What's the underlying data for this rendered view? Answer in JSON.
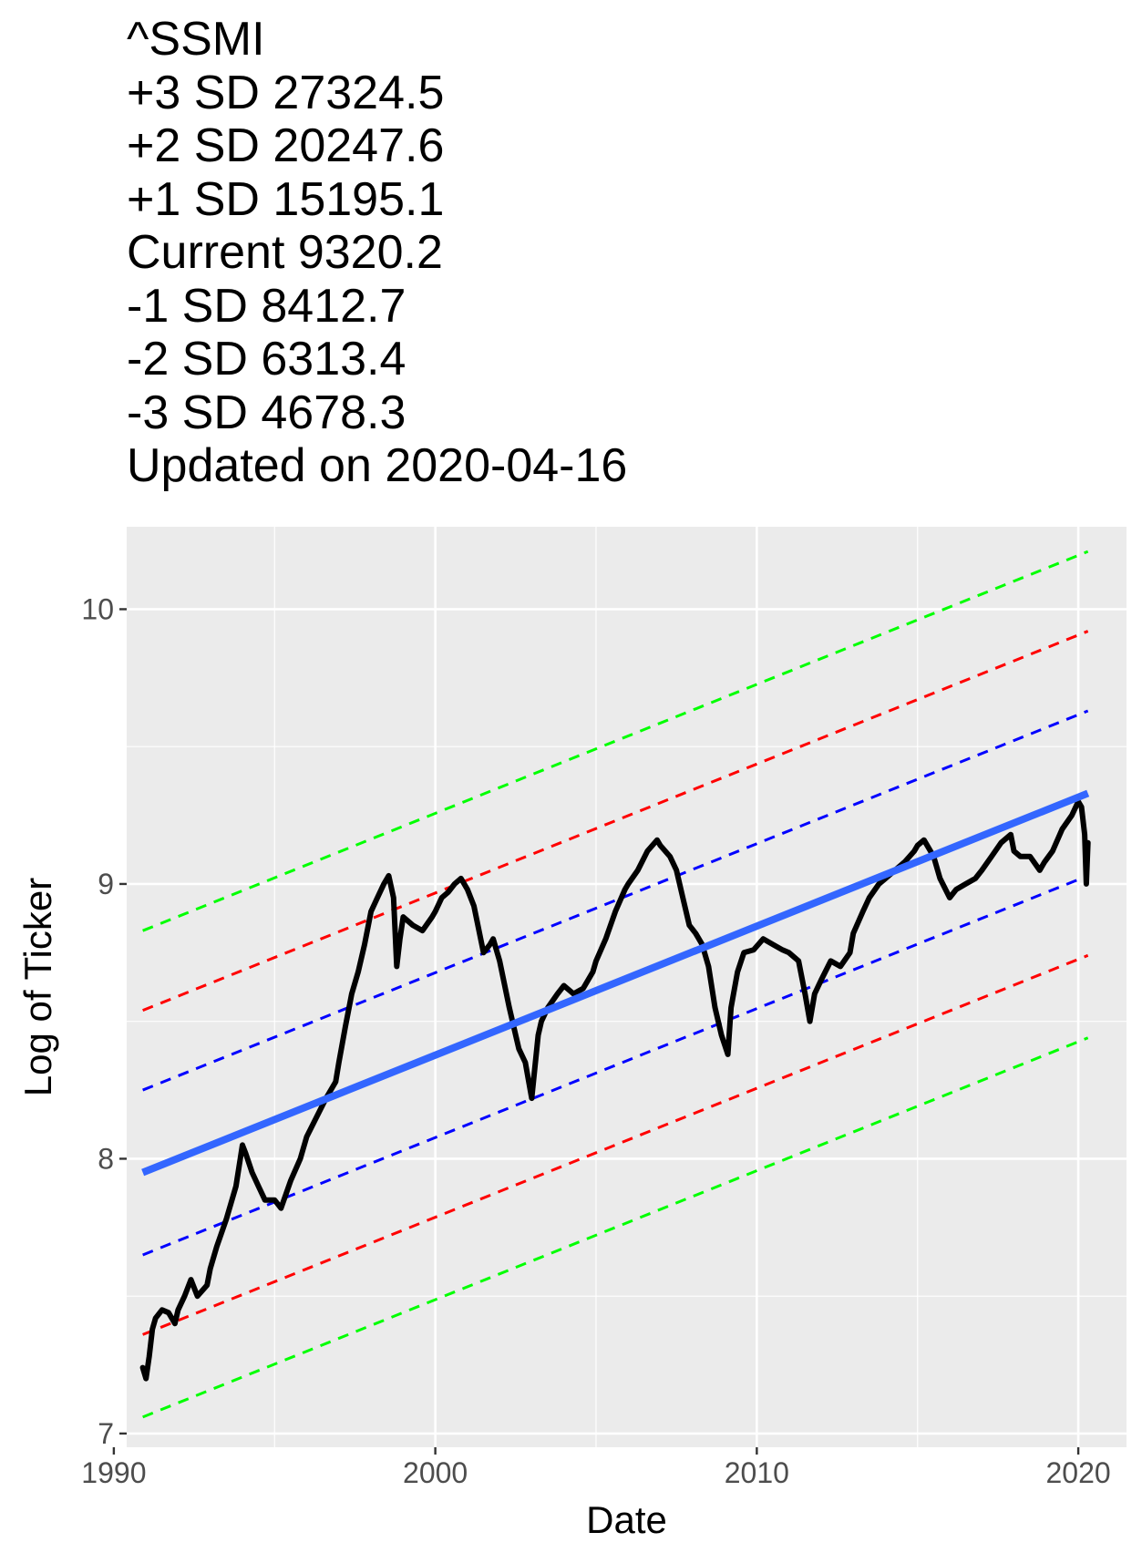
{
  "title_lines": [
    "^SSMI",
    "+3 SD 27324.5",
    "+2 SD 20247.6",
    "+1 SD 15195.1",
    "Current 9320.2",
    "-1 SD 8412.7",
    "-2 SD 6313.4",
    "-3 SD 4678.3",
    "Updated on 2020-04-16"
  ],
  "chart_data": {
    "type": "line",
    "xlabel": "Date",
    "ylabel": "Log of Ticker",
    "xlim": [
      1990.4,
      2021.5
    ],
    "ylim": [
      6.95,
      10.3
    ],
    "x_ticks": [
      1990,
      2000,
      2010,
      2020
    ],
    "y_ticks": [
      7,
      8,
      9,
      10
    ],
    "background": "#ebebeb",
    "grid": true,
    "legend": "none",
    "trend": {
      "name": "trend",
      "color": "#3366ff",
      "x": [
        1990.9,
        2020.3
      ],
      "y": [
        7.95,
        9.33
      ]
    },
    "bands": [
      {
        "name": "+3 SD",
        "color": "#00ff00",
        "y_start": 8.83,
        "y_end": 10.21
      },
      {
        "name": "+2 SD",
        "color": "#ff0000",
        "y_start": 8.54,
        "y_end": 9.92
      },
      {
        "name": "+1 SD",
        "color": "#0000ff",
        "y_start": 8.25,
        "y_end": 9.63
      },
      {
        "name": "-1 SD",
        "color": "#0000ff",
        "y_start": 7.65,
        "y_end": 9.03
      },
      {
        "name": "-2 SD",
        "color": "#ff0000",
        "y_start": 7.36,
        "y_end": 8.74
      },
      {
        "name": "-3 SD",
        "color": "#00ff00",
        "y_start": 7.06,
        "y_end": 8.44
      }
    ],
    "series": [
      {
        "color": "#000000",
        "x": [
          1990.9,
          1991.0,
          1991.1,
          1991.2,
          1991.3,
          1991.5,
          1991.7,
          1991.9,
          1992.0,
          1992.2,
          1992.4,
          1992.6,
          1992.9,
          1993.0,
          1993.2,
          1993.5,
          1993.8,
          1994.0,
          1994.1,
          1994.3,
          1994.5,
          1994.7,
          1995.0,
          1995.2,
          1995.5,
          1995.8,
          1996.0,
          1996.3,
          1996.6,
          1996.9,
          1997.0,
          1997.2,
          1997.4,
          1997.6,
          1997.8,
          1998.0,
          1998.2,
          1998.4,
          1998.55,
          1998.7,
          1998.8,
          1998.9,
          1999.0,
          1999.3,
          1999.6,
          1999.9,
          2000.0,
          2000.2,
          2000.4,
          2000.6,
          2000.8,
          2001.0,
          2001.2,
          2001.5,
          2001.7,
          2001.8,
          2002.0,
          2002.3,
          2002.5,
          2002.6,
          2002.8,
          2003.0,
          2003.2,
          2003.3,
          2003.5,
          2003.8,
          2004.0,
          2004.3,
          2004.6,
          2004.9,
          2005.0,
          2005.3,
          2005.6,
          2005.9,
          2006.0,
          2006.3,
          2006.6,
          2006.9,
          2007.0,
          2007.3,
          2007.5,
          2007.7,
          2007.9,
          2008.1,
          2008.3,
          2008.5,
          2008.7,
          2008.9,
          2009.1,
          2009.2,
          2009.4,
          2009.6,
          2009.9,
          2010.2,
          2010.5,
          2010.8,
          2011.0,
          2011.3,
          2011.5,
          2011.65,
          2011.8,
          2012.0,
          2012.3,
          2012.6,
          2012.9,
          2013.0,
          2013.3,
          2013.5,
          2013.8,
          2014.0,
          2014.3,
          2014.6,
          2014.9,
          2015.0,
          2015.2,
          2015.5,
          2015.7,
          2016.0,
          2016.2,
          2016.5,
          2016.8,
          2017.0,
          2017.3,
          2017.6,
          2017.9,
          2018.0,
          2018.2,
          2018.5,
          2018.8,
          2018.95,
          2019.2,
          2019.5,
          2019.8,
          2020.0,
          2020.1,
          2020.2,
          2020.25,
          2020.3
        ],
        "y": [
          7.24,
          7.2,
          7.28,
          7.38,
          7.42,
          7.45,
          7.44,
          7.4,
          7.45,
          7.5,
          7.56,
          7.5,
          7.54,
          7.6,
          7.68,
          7.78,
          7.9,
          8.05,
          8.02,
          7.95,
          7.9,
          7.85,
          7.85,
          7.82,
          7.92,
          8.0,
          8.08,
          8.15,
          8.22,
          8.28,
          8.35,
          8.48,
          8.6,
          8.68,
          8.78,
          8.9,
          8.95,
          9.0,
          9.03,
          8.95,
          8.7,
          8.8,
          8.88,
          8.85,
          8.83,
          8.88,
          8.9,
          8.95,
          8.97,
          9.0,
          9.02,
          8.98,
          8.92,
          8.75,
          8.78,
          8.8,
          8.72,
          8.55,
          8.45,
          8.4,
          8.35,
          8.22,
          8.45,
          8.5,
          8.55,
          8.6,
          8.63,
          8.6,
          8.62,
          8.68,
          8.72,
          8.8,
          8.9,
          8.98,
          9.0,
          9.05,
          9.12,
          9.16,
          9.14,
          9.1,
          9.05,
          8.95,
          8.85,
          8.82,
          8.78,
          8.7,
          8.55,
          8.45,
          8.38,
          8.55,
          8.68,
          8.75,
          8.76,
          8.8,
          8.78,
          8.76,
          8.75,
          8.72,
          8.6,
          8.5,
          8.6,
          8.65,
          8.72,
          8.7,
          8.75,
          8.82,
          8.9,
          8.95,
          9.0,
          9.02,
          9.05,
          9.08,
          9.12,
          9.14,
          9.16,
          9.1,
          9.02,
          8.95,
          8.98,
          9.0,
          9.02,
          9.05,
          9.1,
          9.15,
          9.18,
          9.12,
          9.1,
          9.1,
          9.05,
          9.08,
          9.12,
          9.2,
          9.25,
          9.3,
          9.28,
          9.18,
          9.0,
          9.15
        ]
      }
    ]
  }
}
